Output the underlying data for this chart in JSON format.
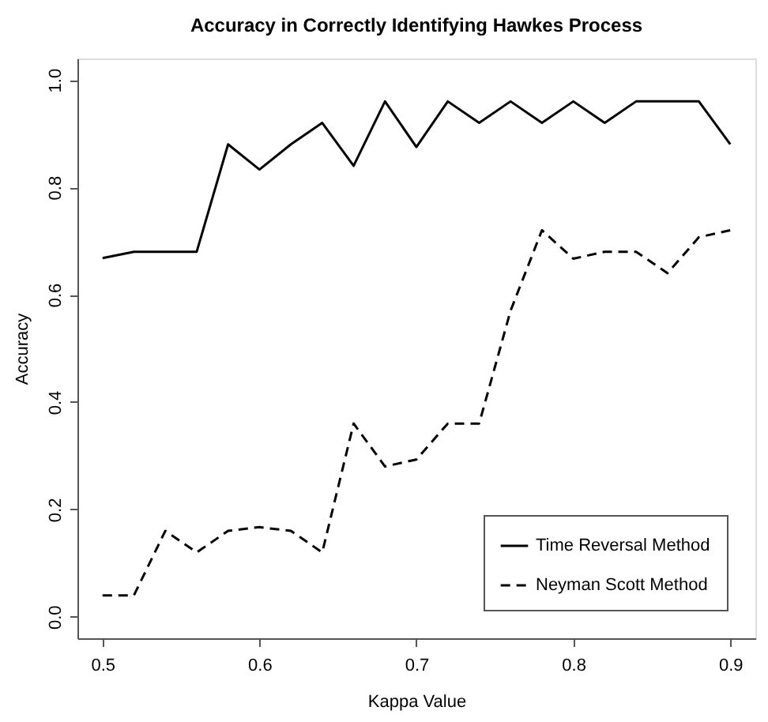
{
  "chart_data": {
    "type": "line",
    "title": "Accuracy in Correctly Identifying Hawkes Process",
    "xlabel": "Kappa Value",
    "ylabel": "Accuracy",
    "x": [
      0.5,
      0.52,
      0.54,
      0.56,
      0.58,
      0.6,
      0.62,
      0.64,
      0.66,
      0.68,
      0.7,
      0.72,
      0.74,
      0.76,
      0.78,
      0.8,
      0.82,
      0.84,
      0.86,
      0.88,
      0.9
    ],
    "series": [
      {
        "name": "Time Reversal Method",
        "color": "#000000",
        "line_style": "solid",
        "values": [
          0.668,
          0.68,
          0.68,
          0.68,
          0.88,
          0.833,
          0.88,
          0.92,
          0.84,
          0.96,
          0.875,
          0.96,
          0.92,
          0.96,
          0.92,
          0.96,
          0.92,
          0.96,
          0.96,
          0.96,
          0.88
        ]
      },
      {
        "name": "Neyman Scott Method",
        "color": "#000000",
        "line_style": "dashed",
        "values": [
          0.04,
          0.04,
          0.16,
          0.12,
          0.16,
          0.167,
          0.16,
          0.12,
          0.36,
          0.28,
          0.293,
          0.36,
          0.36,
          0.57,
          0.72,
          0.667,
          0.68,
          0.68,
          0.64,
          0.707,
          0.72
        ]
      }
    ],
    "xlim": [
      0.484,
      0.916
    ],
    "xticks": [
      0.5,
      0.6,
      0.7,
      0.8,
      0.9
    ],
    "ylim": [
      -0.04,
      1.04
    ],
    "yticks": [
      {
        "value": 0,
        "label": "0.0"
      },
      0.2,
      0.4,
      0.6,
      0.8,
      {
        "value": 1,
        "label": "1.0"
      }
    ],
    "grid": false,
    "legend": "bottom right",
    "marker": "none"
  }
}
